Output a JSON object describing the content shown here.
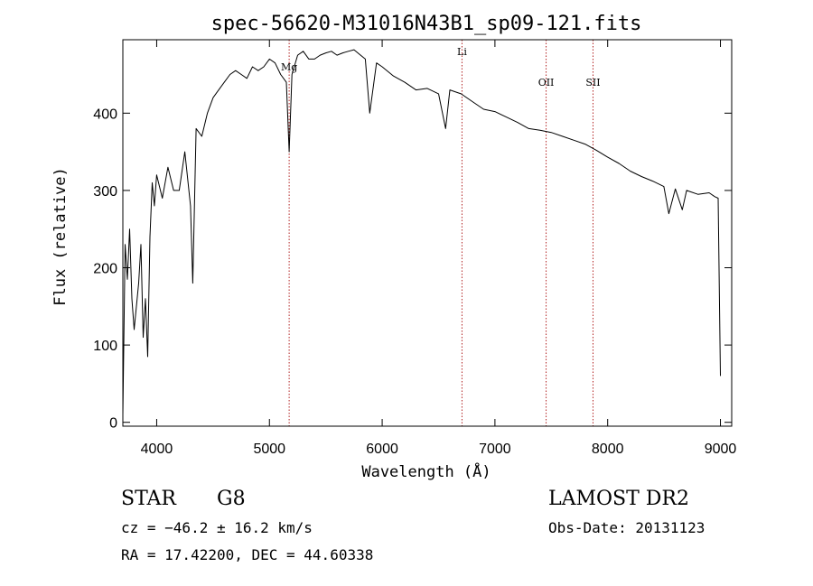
{
  "chart_data": {
    "type": "line",
    "title": "spec-56620-M31016N43B1_sp09-121.fits",
    "xlabel": "Wavelength (Å)",
    "ylabel": "Flux (relative)",
    "xlim": [
      3700,
      9100
    ],
    "ylim": [
      -5,
      495
    ],
    "xticks": [
      4000,
      5000,
      6000,
      7000,
      8000,
      9000
    ],
    "yticks": [
      0,
      100,
      200,
      300,
      400
    ],
    "grid": false,
    "line_color": "#000000",
    "marker_color": "#b22222",
    "lines": [
      {
        "label": "Mg",
        "x": 5175
      },
      {
        "label": "Li",
        "x": 6708
      },
      {
        "label": "OII",
        "x": 7454
      },
      {
        "label": "SII",
        "x": 7870
      }
    ],
    "series": [
      {
        "name": "spectrum",
        "x": [
          3700,
          3720,
          3740,
          3760,
          3780,
          3800,
          3820,
          3840,
          3860,
          3880,
          3900,
          3920,
          3940,
          3960,
          3980,
          4000,
          4050,
          4100,
          4150,
          4200,
          4250,
          4300,
          4320,
          4350,
          4400,
          4450,
          4500,
          4550,
          4600,
          4650,
          4700,
          4750,
          4800,
          4850,
          4900,
          4950,
          5000,
          5050,
          5100,
          5150,
          5175,
          5200,
          5250,
          5300,
          5350,
          5400,
          5450,
          5500,
          5550,
          5600,
          5650,
          5700,
          5750,
          5800,
          5850,
          5890,
          5950,
          6000,
          6100,
          6200,
          6300,
          6400,
          6500,
          6563,
          6600,
          6700,
          6800,
          6900,
          7000,
          7100,
          7200,
          7300,
          7400,
          7500,
          7600,
          7700,
          7800,
          7900,
          8000,
          8100,
          8200,
          8300,
          8400,
          8498,
          8542,
          8600,
          8662,
          8700,
          8800,
          8900,
          8950,
          8980,
          9000
        ],
        "y": [
          10,
          230,
          185,
          250,
          160,
          120,
          150,
          180,
          230,
          110,
          160,
          85,
          240,
          310,
          280,
          320,
          290,
          330,
          300,
          300,
          350,
          280,
          180,
          380,
          370,
          400,
          420,
          430,
          440,
          450,
          455,
          450,
          445,
          460,
          455,
          460,
          470,
          465,
          450,
          440,
          350,
          450,
          475,
          480,
          470,
          470,
          475,
          478,
          480,
          475,
          478,
          480,
          482,
          476,
          470,
          400,
          465,
          460,
          448,
          440,
          430,
          432,
          425,
          380,
          430,
          425,
          415,
          405,
          402,
          395,
          388,
          380,
          378,
          375,
          370,
          365,
          360,
          352,
          343,
          335,
          325,
          318,
          312,
          305,
          270,
          302,
          275,
          300,
          295,
          297,
          292,
          290,
          60
        ]
      }
    ]
  },
  "info": {
    "object_class": "STAR",
    "subclass": "G8",
    "survey": "LAMOST DR2",
    "cz": "cz = −46.2 ± 16.2 km/s",
    "obs_date": "Obs-Date: 20131123",
    "coords": "RA =  17.42200, DEC =  44.60338"
  }
}
